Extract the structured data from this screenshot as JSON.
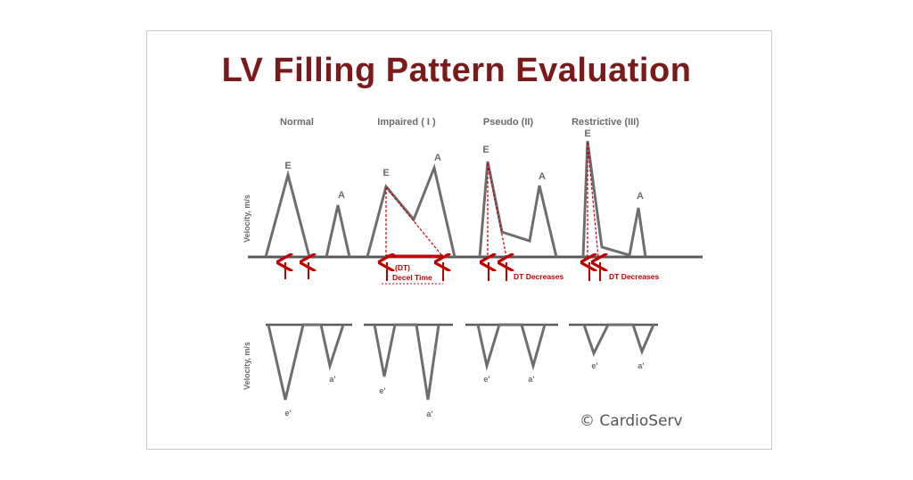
{
  "title": "LV Filling Pattern Evaluation",
  "patterns": [
    {
      "name": "Normal"
    },
    {
      "name": "Impaired ( I )"
    },
    {
      "name": "Pseudo (II)"
    },
    {
      "name": "Restrictive (III)"
    }
  ],
  "wave_labels": {
    "e": "E",
    "a": "A",
    "e_prime": "e'",
    "a_prime": "a'"
  },
  "axis_label": "Velocity, m/s",
  "annotations": {
    "dt": "(DT)",
    "decel_time": "Decel Time",
    "dt_decreases_pseudo": "DT Decreases",
    "dt_decreases_restrictive": "DT Decreases"
  },
  "copyright": "© CardioServ",
  "colors": {
    "title": "#7b1a1a",
    "line": "#6a6a6a",
    "accent": "#c00000"
  }
}
